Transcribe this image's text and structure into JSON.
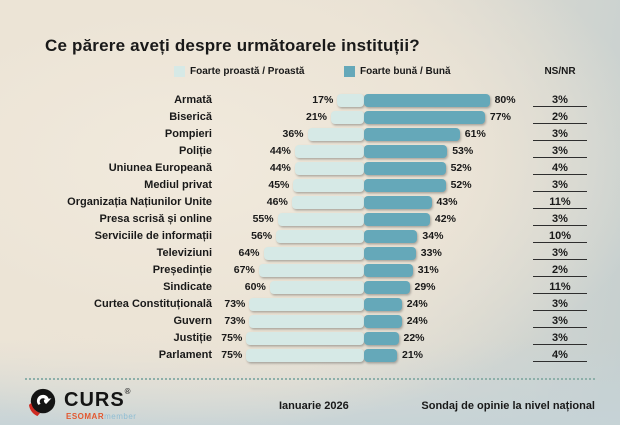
{
  "title": "Ce părere aveți despre următoarele instituții?",
  "legend": {
    "bad": "Foarte proastă / Proastă",
    "good": "Foarte bună / Bună",
    "nsnr": "NS/NR"
  },
  "colors": {
    "bad": "#d6e9e6",
    "good": "#65a8b9",
    "text": "#191919",
    "nsnr_line": "#2e2e2e",
    "divider": "#8cafa9",
    "logo_red": "#cf2b22",
    "esomar_orange": "#e2572f",
    "esomar_member_blue": "#8fbdd3"
  },
  "footer": {
    "date": "Ianuarie 2026",
    "note": "Sondaj de opinie la nivel național",
    "logo": {
      "name": "CURS",
      "reg": "®",
      "sub_primary": "ESOMAR",
      "sub_secondary": "member"
    }
  },
  "chart_data": {
    "type": "bar",
    "orientation": "horizontal-diverging",
    "value_suffix": "%",
    "title": "Ce părere aveți despre următoarele instituții?",
    "legend_position": "top",
    "categories": [
      "Armată",
      "Biserică",
      "Pompieri",
      "Poliție",
      "Uniunea Europeană",
      "Mediul privat",
      "Organizația Națiunilor Unite",
      "Presa scrisă  și online",
      "Serviciile de informații",
      "Televiziuni",
      "Președinție",
      "Sindicate",
      "Curtea Constituțională",
      "Guvern",
      "Justiție",
      "Parlament"
    ],
    "series": [
      {
        "name": "Foarte proastă / Proastă",
        "values": [
          17,
          21,
          36,
          44,
          44,
          45,
          46,
          55,
          56,
          64,
          67,
          60,
          73,
          73,
          75,
          75
        ]
      },
      {
        "name": "Foarte bună / Bună",
        "values": [
          80,
          77,
          61,
          53,
          52,
          52,
          43,
          42,
          34,
          33,
          31,
          29,
          24,
          24,
          22,
          21
        ]
      },
      {
        "name": "NS/NR",
        "values": [
          3,
          2,
          3,
          3,
          4,
          3,
          11,
          3,
          10,
          3,
          2,
          11,
          3,
          3,
          3,
          4
        ]
      }
    ]
  }
}
